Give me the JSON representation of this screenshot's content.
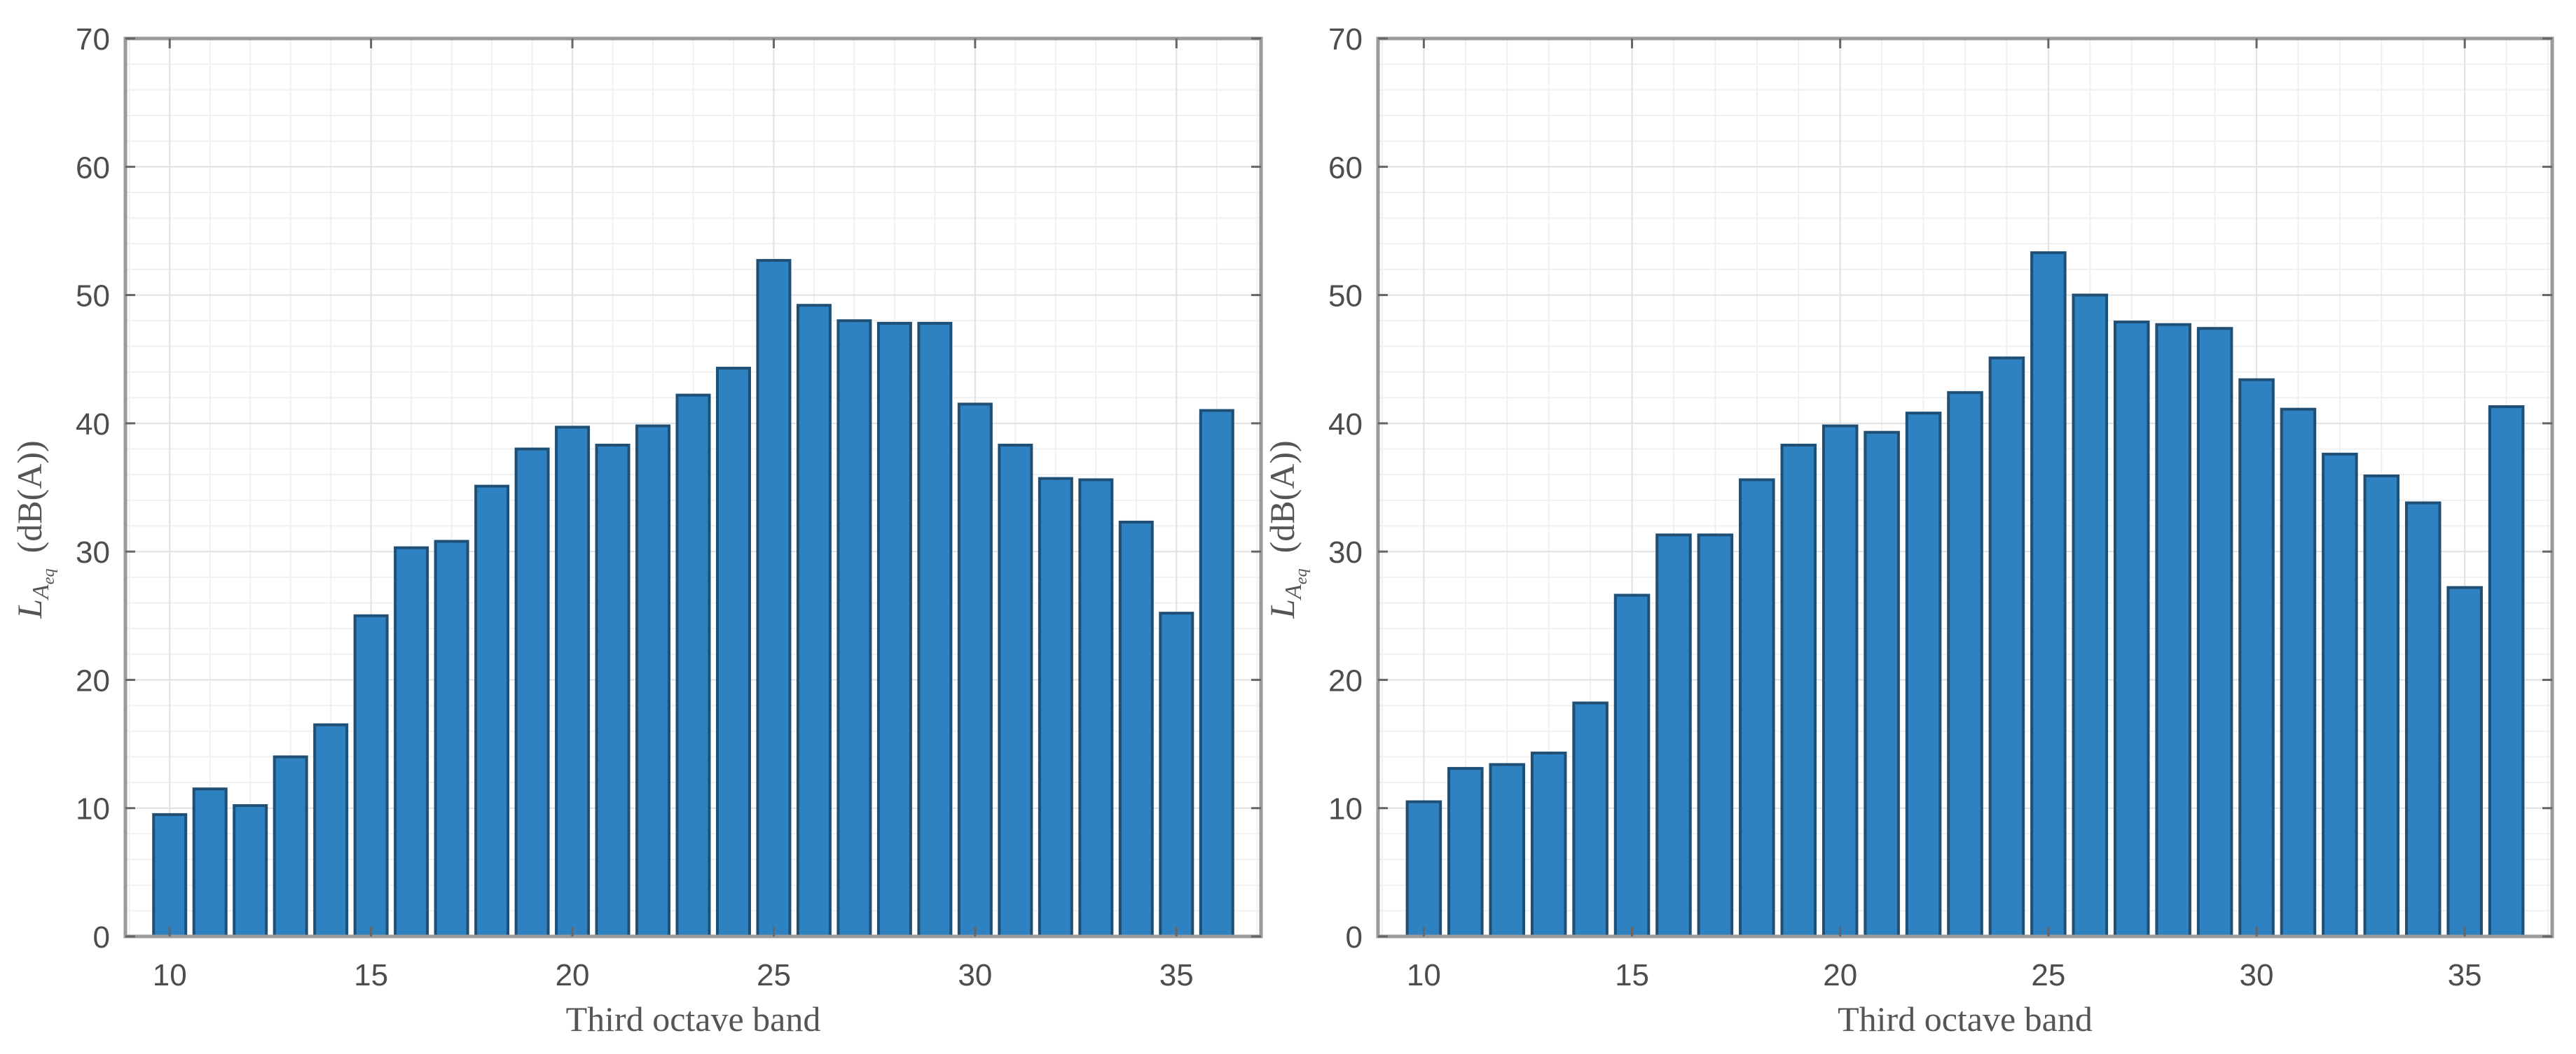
{
  "chart_data": [
    {
      "type": "bar",
      "xlabel": "Third octave band",
      "ylabel_main": "L",
      "ylabel_sub": "A",
      "ylabel_subsub": "eq",
      "ylabel_unit": "(dB(A))",
      "xlim": [
        8.9,
        37.1
      ],
      "ylim": [
        0,
        70
      ],
      "xticks": [
        10,
        15,
        20,
        25,
        30,
        35
      ],
      "yticks": [
        0,
        10,
        20,
        30,
        40,
        50,
        60,
        70
      ],
      "grid": true,
      "minor_grid": true,
      "color": "#2e82c2",
      "x": [
        10,
        11,
        12,
        13,
        14,
        15,
        16,
        17,
        18,
        19,
        20,
        21,
        22,
        23,
        24,
        25,
        26,
        27,
        28,
        29,
        30,
        31,
        32,
        33,
        34,
        35,
        36
      ],
      "values": [
        9.5,
        11.5,
        10.2,
        14.0,
        16.5,
        25.0,
        30.3,
        30.8,
        35.1,
        38.0,
        39.7,
        38.3,
        39.8,
        42.2,
        44.3,
        52.7,
        49.2,
        48.0,
        47.8,
        47.8,
        41.5,
        38.3,
        35.7,
        35.6,
        32.3,
        25.2,
        41.0
      ]
    },
    {
      "type": "bar",
      "xlabel": "Third octave band",
      "ylabel_main": "L",
      "ylabel_sub": "A",
      "ylabel_subsub": "eq",
      "ylabel_unit": "(dB(A))",
      "xlim": [
        8.9,
        37.1
      ],
      "ylim": [
        0,
        70
      ],
      "xticks": [
        10,
        15,
        20,
        25,
        30,
        35
      ],
      "yticks": [
        0,
        10,
        20,
        30,
        40,
        50,
        60,
        70
      ],
      "grid": true,
      "minor_grid": true,
      "color": "#2e82c2",
      "x": [
        10,
        11,
        12,
        13,
        14,
        15,
        16,
        17,
        18,
        19,
        20,
        21,
        22,
        23,
        24,
        25,
        26,
        27,
        28,
        29,
        30,
        31,
        32,
        33,
        34,
        35,
        36
      ],
      "values": [
        10.5,
        13.1,
        13.4,
        14.3,
        18.2,
        26.6,
        31.3,
        31.3,
        35.6,
        38.3,
        39.8,
        39.3,
        40.8,
        42.4,
        45.1,
        53.3,
        50.0,
        47.9,
        47.7,
        47.4,
        43.4,
        41.1,
        37.6,
        35.9,
        33.8,
        27.2,
        41.3
      ]
    }
  ]
}
